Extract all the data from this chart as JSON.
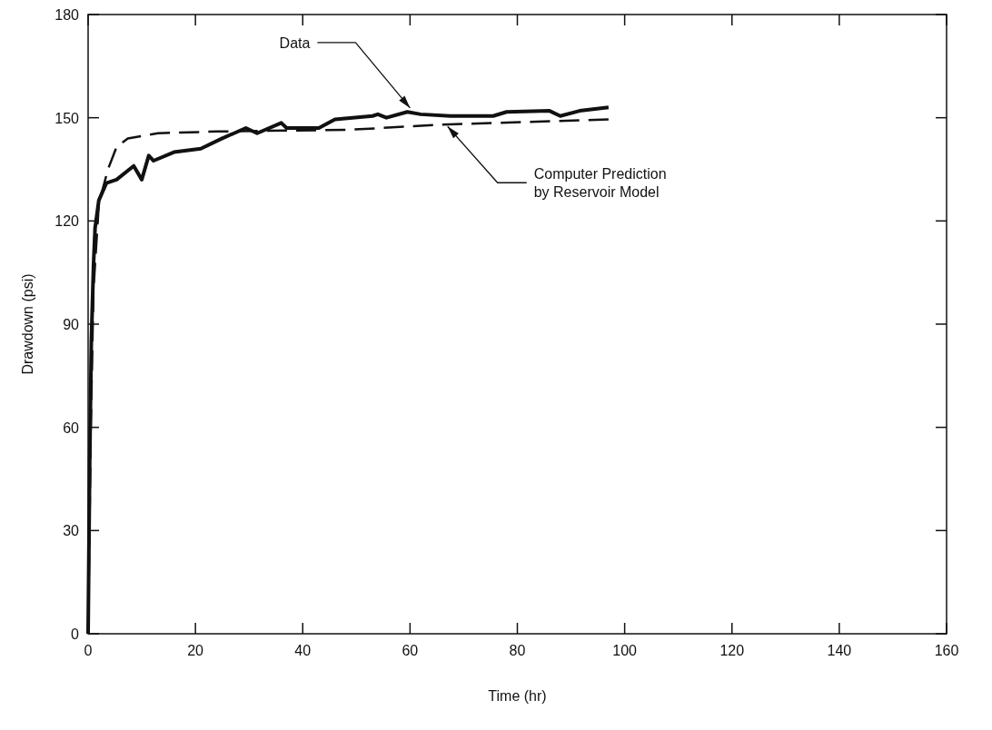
{
  "chart_data": {
    "type": "line",
    "xlabel": "Time (hr)",
    "ylabel": "Drawdown (psi)",
    "xlim": [
      0,
      160
    ],
    "ylim": [
      0,
      180
    ],
    "xticks": [
      0,
      20,
      40,
      60,
      80,
      100,
      120,
      140,
      160
    ],
    "yticks": [
      0,
      30,
      60,
      90,
      120,
      150,
      180
    ],
    "grid": false,
    "series": [
      {
        "color": "#111111",
        "line_style": "solid",
        "x": [
          0,
          0.3,
          0.6,
          1,
          1.3,
          2,
          3.4,
          5.3,
          8.5,
          10,
          11.3,
          12.2,
          16,
          21,
          25,
          29.4,
          31.5,
          36,
          37,
          43,
          46,
          53,
          54,
          55.6,
          59.5,
          62,
          67.5,
          75.5,
          78,
          86,
          88,
          91.6,
          97
        ],
        "values": [
          0,
          50,
          85,
          107,
          118,
          126,
          131,
          132,
          136,
          132,
          139,
          137.5,
          140,
          141,
          144,
          147,
          145.5,
          148.5,
          147,
          147,
          149.5,
          150.5,
          151,
          150,
          151.7,
          151,
          150.5,
          150.5,
          151.7,
          152,
          150.5,
          152,
          153
        ]
      },
      {
        "color": "#111111",
        "line_style": "dashed",
        "x": [
          0,
          0.5,
          1,
          2,
          3.7,
          5.3,
          7.4,
          13,
          24,
          48.7,
          66,
          97
        ],
        "values": [
          0,
          60,
          100,
          125,
          135,
          141.5,
          144,
          145.5,
          146,
          146.5,
          148,
          149.5
        ]
      }
    ],
    "annotations": [
      {
        "text": "Data",
        "x": 60,
        "y": 151
      },
      {
        "text": "Computer Prediction\nby Reservoir Model",
        "x": 67,
        "y": 148
      }
    ]
  }
}
